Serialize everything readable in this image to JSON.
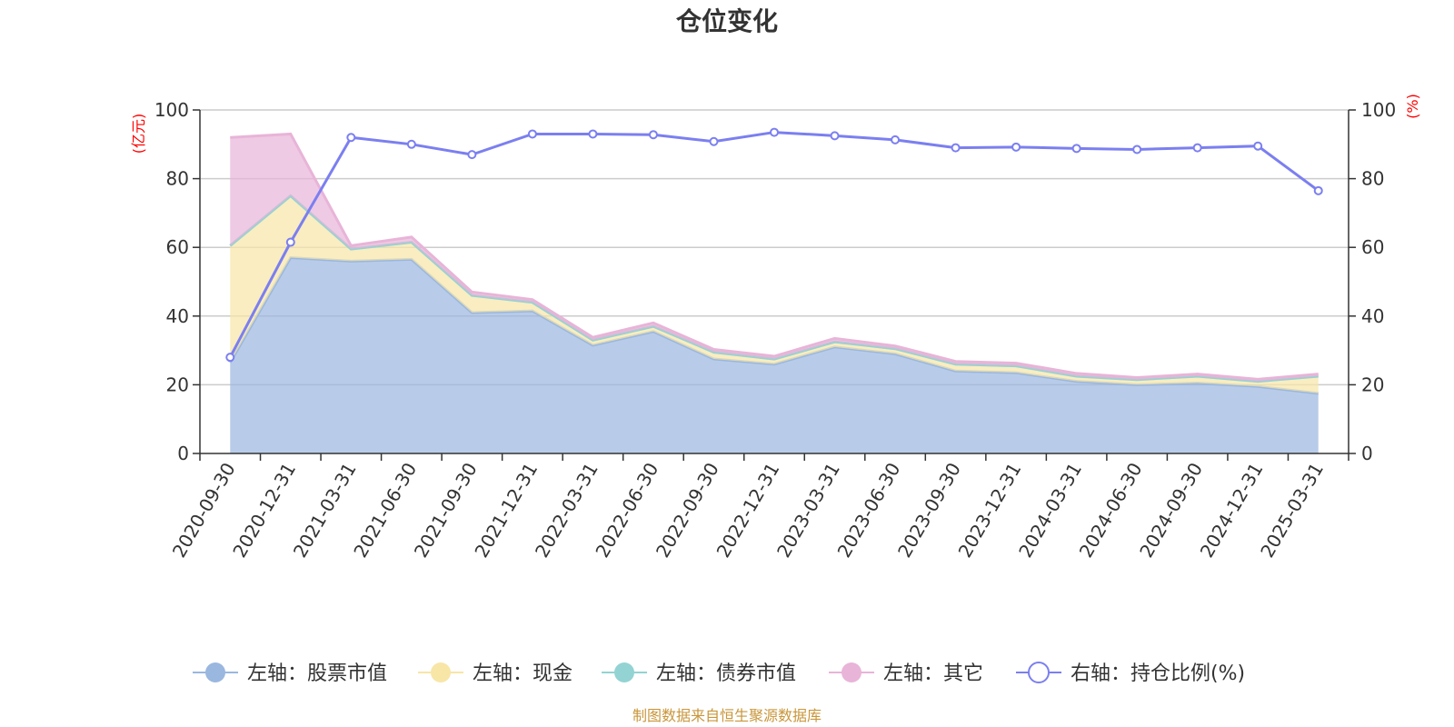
{
  "chart_data": {
    "type": "area",
    "title": "仓位变化",
    "left_unit": "(亿元)",
    "right_unit": "(%)",
    "left_ylim": [
      0,
      100
    ],
    "right_ylim": [
      0,
      100
    ],
    "left_ticks": [
      "0",
      "20",
      "40",
      "60",
      "80",
      "100"
    ],
    "right_ticks": [
      "0",
      "20",
      "40",
      "60",
      "80",
      "100"
    ],
    "grid": true,
    "legend_position": "bottom",
    "categories": [
      "2020-09-30",
      "2020-12-31",
      "2021-03-31",
      "2021-06-30",
      "2021-09-30",
      "2021-12-31",
      "2022-03-31",
      "2022-06-30",
      "2022-09-30",
      "2022-12-31",
      "2023-03-31",
      "2023-06-30",
      "2023-09-30",
      "2023-12-31",
      "2024-03-31",
      "2024-06-30",
      "2024-09-30",
      "2024-12-31",
      "2025-03-31"
    ],
    "series": [
      {
        "name": "左轴：股票市值",
        "axis": "left",
        "type": "area",
        "color": "#9ab7e0",
        "values": [
          26.5,
          57,
          56,
          56.5,
          41,
          41.5,
          31.5,
          35.5,
          27.5,
          26,
          31,
          29,
          24,
          23.5,
          21,
          20,
          20.5,
          19.5,
          17.5
        ]
      },
      {
        "name": "左轴：现金",
        "axis": "left",
        "type": "area",
        "color": "#f7e6a6",
        "values": [
          34,
          18,
          3.5,
          5,
          5,
          2.5,
          1.5,
          1.5,
          2,
          1.5,
          1.5,
          1.5,
          2,
          2,
          1.5,
          1.5,
          2,
          1.5,
          5
        ]
      },
      {
        "name": "左轴：债券市值",
        "axis": "left",
        "type": "area",
        "color": "#93d3d3",
        "values": [
          0,
          0,
          0,
          0,
          0,
          0,
          0,
          0,
          0,
          0,
          0,
          0,
          0,
          0,
          0,
          0,
          0,
          0,
          0
        ]
      },
      {
        "name": "左轴：其它",
        "axis": "left",
        "type": "area",
        "color": "#e8b4d8",
        "values": [
          31.5,
          18,
          1,
          1.5,
          1,
          0.8,
          0.8,
          1,
          0.8,
          0.8,
          1,
          0.8,
          0.8,
          0.8,
          0.8,
          0.6,
          0.6,
          0.6,
          0.6
        ]
      },
      {
        "name": "右轴：持仓比例(%)",
        "axis": "right",
        "type": "line",
        "color": "#7b7ff0",
        "values": [
          28,
          61.5,
          92,
          90,
          87,
          93,
          93,
          92.8,
          90.8,
          93.5,
          92.5,
          91.3,
          89,
          89.2,
          88.8,
          88.5,
          89,
          89.5,
          76.5
        ]
      }
    ]
  },
  "source": "制图数据来自恒生聚源数据库"
}
